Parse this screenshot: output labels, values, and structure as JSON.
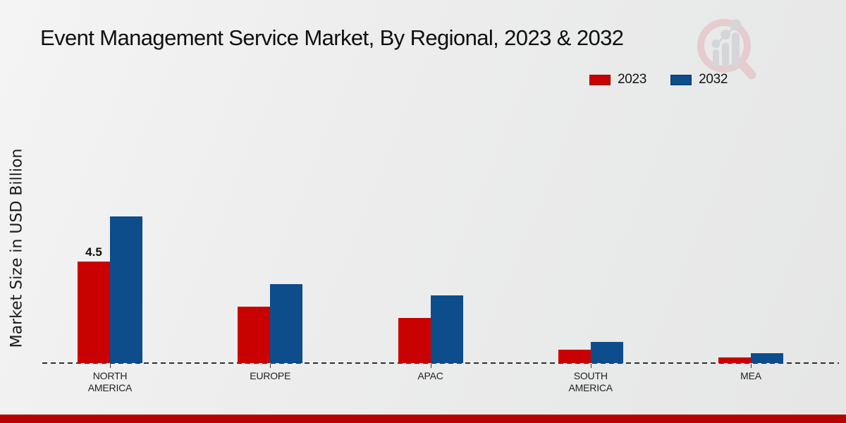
{
  "title": "Event Management Service Market, By Regional, 2023 & 2032",
  "ylabel": "Market Size in USD Billion",
  "watermark_icon": "magnifier-bar-chart-logo",
  "legend_position": "top-right",
  "footer": {
    "strip_color": "#b80202"
  },
  "colors": {
    "series_2023": "#c90101",
    "series_2032": "#0d4d8c",
    "background": "#ebebeb",
    "baseline": "#2e2e2e"
  },
  "chart_data": {
    "type": "bar",
    "categories": [
      "NORTH AMERICA",
      "EUROPE",
      "APAC",
      "SOUTH AMERICA",
      "MEA"
    ],
    "series": [
      {
        "name": "2023",
        "color": "#c90101",
        "values": [
          4.5,
          2.5,
          2.0,
          0.6,
          0.25
        ]
      },
      {
        "name": "2032",
        "color": "#0d4d8c",
        "values": [
          6.5,
          3.5,
          3.0,
          0.95,
          0.45
        ]
      }
    ],
    "title": "Event Management Service Market, By Regional, 2023 & 2032",
    "xlabel": "",
    "ylabel": "Market Size in USD Billion",
    "ylim": [
      0,
      7
    ],
    "grid": false,
    "axis_style": "dashed-baseline-only",
    "legend_position": "top-right",
    "data_labels": [
      {
        "category": "NORTH AMERICA",
        "series": "2023",
        "text": "4.5"
      }
    ]
  }
}
